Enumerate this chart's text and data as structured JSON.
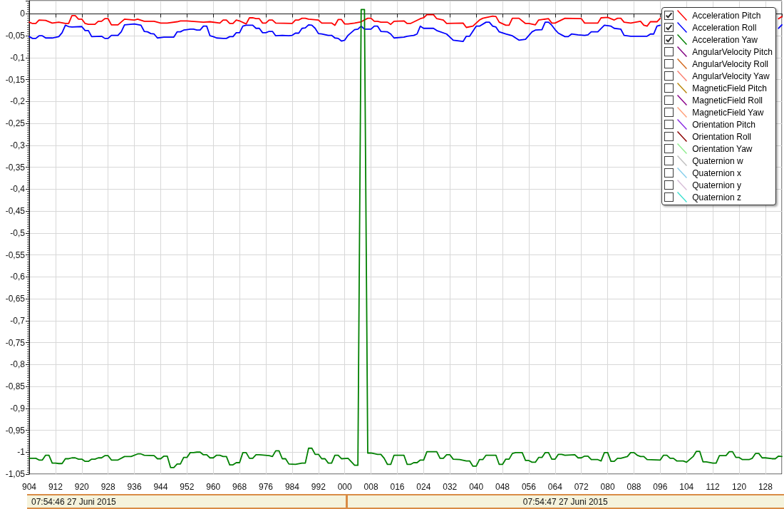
{
  "chart_data": {
    "type": "line",
    "xlim": [
      "2015-06-27T07:54:46.904",
      "2015-06-27T07:54:47.133"
    ],
    "ylim": [
      -1.05,
      0.03
    ],
    "xticks": [
      {
        "value": "2015-06-27T07:54:46.904",
        "label": "904"
      },
      {
        "value": "2015-06-27T07:54:46.912",
        "label": "912"
      },
      {
        "value": "2015-06-27T07:54:46.920",
        "label": "920"
      },
      {
        "value": "2015-06-27T07:54:46.928",
        "label": "928"
      },
      {
        "value": "2015-06-27T07:54:46.936",
        "label": "936"
      },
      {
        "value": "2015-06-27T07:54:46.944",
        "label": "944"
      },
      {
        "value": "2015-06-27T07:54:46.952",
        "label": "952"
      },
      {
        "value": "2015-06-27T07:54:46.960",
        "label": "960"
      },
      {
        "value": "2015-06-27T07:54:46.968",
        "label": "968"
      },
      {
        "value": "2015-06-27T07:54:46.976",
        "label": "976"
      },
      {
        "value": "2015-06-27T07:54:46.984",
        "label": "984"
      },
      {
        "value": "2015-06-27T07:54:46.992",
        "label": "992"
      },
      {
        "value": "2015-06-27T07:54:47.000",
        "label": "000"
      },
      {
        "value": "2015-06-27T07:54:47.008",
        "label": "008"
      },
      {
        "value": "2015-06-27T07:54:47.016",
        "label": "016"
      },
      {
        "value": "2015-06-27T07:54:47.024",
        "label": "024"
      },
      {
        "value": "2015-06-27T07:54:47.032",
        "label": "032"
      },
      {
        "value": "2015-06-27T07:54:47.040",
        "label": "040"
      },
      {
        "value": "2015-06-27T07:54:47.048",
        "label": "048"
      },
      {
        "value": "2015-06-27T07:54:47.056",
        "label": "056"
      },
      {
        "value": "2015-06-27T07:54:47.064",
        "label": "064"
      },
      {
        "value": "2015-06-27T07:54:47.072",
        "label": "072"
      },
      {
        "value": "2015-06-27T07:54:47.080",
        "label": "080"
      },
      {
        "value": "2015-06-27T07:54:47.088",
        "label": "088"
      },
      {
        "value": "2015-06-27T07:54:47.096",
        "label": "096"
      },
      {
        "value": "2015-06-27T07:54:47.104",
        "label": "104"
      },
      {
        "value": "2015-06-27T07:54:47.112",
        "label": "112"
      },
      {
        "value": "2015-06-27T07:54:47.120",
        "label": "120"
      },
      {
        "value": "2015-06-27T07:54:47.128",
        "label": "128"
      }
    ],
    "yticks": [
      {
        "value": -1.05,
        "label": "-1,05"
      },
      -1,
      {
        "value": -0.95,
        "label": "-0,95"
      },
      {
        "value": -0.9,
        "label": "-0,9"
      },
      {
        "value": -0.85,
        "label": "-0,85"
      },
      {
        "value": -0.8,
        "label": "-0,8"
      },
      {
        "value": -0.75,
        "label": "-0,75"
      },
      {
        "value": -0.7,
        "label": "-0,7"
      },
      {
        "value": -0.65,
        "label": "-0,65"
      },
      {
        "value": -0.6,
        "label": "-0,6"
      },
      {
        "value": -0.55,
        "label": "-0,55"
      },
      {
        "value": -0.5,
        "label": "-0,5"
      },
      {
        "value": -0.45,
        "label": "-0,45"
      },
      {
        "value": -0.4,
        "label": "-0,4"
      },
      {
        "value": -0.35,
        "label": "-0,35"
      },
      {
        "value": -0.3,
        "label": "-0,3"
      },
      {
        "value": -0.25,
        "label": "-0,25"
      },
      {
        "value": -0.2,
        "label": "-0,2"
      },
      {
        "value": -0.15,
        "label": "-0,15"
      },
      {
        "value": -0.1,
        "label": "-0,1"
      },
      {
        "value": -0.05,
        "label": "-0,05"
      },
      0
    ],
    "grid": true,
    "legend": "top right",
    "annotations": [
      "07:54:46 27 Juni 2015",
      "07:54:47 27 Juni 2015"
    ],
    "series": [
      {
        "name": "Acceleration Pitch",
        "color": "#ff0000",
        "x": [
          "2015-06-27T07:54:46.904",
          "2015-06-27T07:54:46.905",
          "2015-06-27T07:54:46.906",
          "2015-06-27T07:54:46.907",
          "2015-06-27T07:54:46.909",
          "2015-06-27T07:54:46.911",
          "2015-06-27T07:54:46.913",
          "2015-06-27T07:54:46.915",
          "2015-06-27T07:54:46.916",
          "2015-06-27T07:54:46.917",
          "2015-06-27T07:54:46.918",
          "2015-06-27T07:54:46.919",
          "2015-06-27T07:54:46.920",
          "2015-06-27T07:54:46.921",
          "2015-06-27T07:54:46.922",
          "2015-06-27T07:54:46.924",
          "2015-06-27T07:54:46.925",
          "2015-06-27T07:54:46.926",
          "2015-06-27T07:54:46.927",
          "2015-06-27T07:54:46.928",
          "2015-06-27T07:54:46.929",
          "2015-06-27T07:54:46.931",
          "2015-06-27T07:54:46.933",
          "2015-06-27T07:54:46.936",
          "2015-06-27T07:54:46.937",
          "2015-06-27T07:54:46.939",
          "2015-06-27T07:54:46.942",
          "2015-06-27T07:54:46.944",
          "2015-06-27T07:54:46.946",
          "2015-06-27T07:54:46.949",
          "2015-06-27T07:54:46.950",
          "2015-06-27T07:54:46.952",
          "2015-06-27T07:54:46.957",
          "2015-06-27T07:54:46.959",
          "2015-06-27T07:54:46.962",
          "2015-06-27T07:54:46.963",
          "2015-06-27T07:54:46.964",
          "2015-06-27T07:54:46.965",
          "2015-06-27T07:54:46.966",
          "2015-06-27T07:54:46.967",
          "2015-06-27T07:54:46.968",
          "2015-06-27T07:54:46.970",
          "2015-06-27T07:54:46.971",
          "2015-06-27T07:54:46.972",
          "2015-06-27T07:54:46.973",
          "2015-06-27T07:54:46.974",
          "2015-06-27T07:54:46.975",
          "2015-06-27T07:54:46.976",
          "2015-06-27T07:54:46.977",
          "2015-06-27T07:54:46.978",
          "2015-06-27T07:54:46.979",
          "2015-06-27T07:54:46.984",
          "2015-06-27T07:54:46.985",
          "2015-06-27T07:54:46.986",
          "2015-06-27T07:54:46.987",
          "2015-06-27T07:54:46.988",
          "2015-06-27T07:54:46.989",
          "2015-06-27T07:54:46.992",
          "2015-06-27T07:54:46.993",
          "2015-06-27T07:54:46.996",
          "2015-06-27T07:54:46.997",
          "2015-06-27T07:54:46.998",
          "2015-06-27T07:54:46.999",
          "2015-06-27T07:54:47.000",
          "2015-06-27T07:54:47.001",
          "2015-06-27T07:54:47.003",
          "2015-06-27T07:54:47.005",
          "2015-06-27T07:54:47.007",
          "2015-06-27T07:54:47.008",
          "2015-06-27T07:54:47.009",
          "2015-06-27T07:54:47.010",
          "2015-06-27T07:54:47.011",
          "2015-06-27T07:54:47.013",
          "2015-06-27T07:54:47.014",
          "2015-06-27T07:54:47.015",
          "2015-06-27T07:54:47.018",
          "2015-06-27T07:54:47.019",
          "2015-06-27T07:54:47.020",
          "2015-06-27T07:54:47.023",
          "2015-06-27T07:54:47.024",
          "2015-06-27T07:54:47.025",
          "2015-06-27T07:54:47.027",
          "2015-06-27T07:54:47.028",
          "2015-06-27T07:54:47.030",
          "2015-06-27T07:54:47.031",
          "2015-06-27T07:54:47.036",
          "2015-06-27T07:54:47.037",
          "2015-06-27T07:54:47.039",
          "2015-06-27T07:54:47.041",
          "2015-06-27T07:54:47.042",
          "2015-06-27T07:54:47.045",
          "2015-06-27T07:54:47.046",
          "2015-06-27T07:54:47.047",
          "2015-06-27T07:54:47.049",
          "2015-06-27T07:54:47.050",
          "2015-06-27T07:54:47.051",
          "2015-06-27T07:54:47.053",
          "2015-06-27T07:54:47.055",
          "2015-06-27T07:54:47.056",
          "2015-06-27T07:54:47.058",
          "2015-06-27T07:54:47.059",
          "2015-06-27T07:54:47.062",
          "2015-06-27T07:54:47.063",
          "2015-06-27T07:54:47.064",
          "2015-06-27T07:54:47.067",
          "2015-06-27T07:54:47.072",
          "2015-06-27T07:54:47.073",
          "2015-06-27T07:54:47.077",
          "2015-06-27T07:54:47.078",
          "2015-06-27T07:54:47.080",
          "2015-06-27T07:54:47.082",
          "2015-06-27T07:54:47.083",
          "2015-06-27T07:54:47.084",
          "2015-06-27T07:54:47.085",
          "2015-06-27T07:54:47.087",
          "2015-06-27T07:54:47.090",
          "2015-06-27T07:54:47.091",
          "2015-06-27T07:54:47.092",
          "2015-06-27T07:54:47.093",
          "2015-06-27T07:54:47.095",
          "2015-06-27T07:54:47.096",
          "2015-06-27T07:54:47.100",
          "2015-06-27T07:54:47.132",
          "2015-06-27T07:54:47.133"
        ],
        "values": [
          -0.019,
          -0.022,
          -0.022,
          -0.014,
          -0.015,
          -0.021,
          -0.019,
          -0.022,
          -0.022,
          -0.004,
          -0.004,
          -0.012,
          -0.012,
          -0.022,
          -0.024,
          -0.024,
          -0.017,
          -0.017,
          -0.011,
          -0.011,
          -0.025,
          -0.025,
          -0.012,
          -0.014,
          -0.012,
          -0.017,
          -0.017,
          -0.021,
          -0.021,
          -0.018,
          -0.016,
          -0.016,
          -0.019,
          -0.018,
          -0.021,
          -0.014,
          -0.014,
          -0.022,
          -0.022,
          -0.014,
          -0.016,
          -0.023,
          -0.009,
          -0.009,
          -0.011,
          -0.011,
          -0.021,
          -0.021,
          -0.014,
          -0.014,
          -0.021,
          -0.022,
          -0.014,
          -0.014,
          -0.01,
          -0.01,
          -0.012,
          -0.014,
          -0.021,
          -0.021,
          -0.026,
          -0.013,
          -0.013,
          -0.023,
          -0.023,
          -0.021,
          -0.018,
          -0.01,
          -0.01,
          -0.017,
          -0.017,
          -0.019,
          -0.019,
          -0.024,
          -0.017,
          -0.016,
          -0.022,
          -0.022,
          -0.011,
          -0.009,
          -0.002,
          -0.002,
          -0.011,
          -0.014,
          -0.022,
          -0.021,
          -0.031,
          -0.028,
          -0.014,
          -0.01,
          -0.005,
          -0.006,
          -0.019,
          -0.026,
          -0.026,
          -0.01,
          -0.01,
          -0.022,
          -0.022,
          -0.025,
          -0.014,
          -0.011,
          -0.021,
          -0.021,
          -0.01,
          -0.011,
          -0.021,
          -0.021,
          -0.009,
          -0.008,
          -0.014,
          -0.01,
          -0.01,
          -0.019,
          -0.021,
          -0.017,
          -0.026,
          -0.028,
          -0.018,
          -0.018,
          -0.01,
          null,
          -0.011,
          -0.006
        ]
      },
      {
        "name": "Acceleration Roll",
        "color": "#0000ff",
        "x": [
          "2015-06-27T07:54:46.904",
          "2015-06-27T07:54:46.905",
          "2015-06-27T07:54:46.906",
          "2015-06-27T07:54:46.907",
          "2015-06-27T07:54:46.908",
          "2015-06-27T07:54:46.909",
          "2015-06-27T07:54:46.911",
          "2015-06-27T07:54:46.913",
          "2015-06-27T07:54:46.914",
          "2015-06-27T07:54:46.915",
          "2015-06-27T07:54:46.916",
          "2015-06-27T07:54:46.917",
          "2015-06-27T07:54:46.920",
          "2015-06-27T07:54:46.921",
          "2015-06-27T07:54:46.922",
          "2015-06-27T07:54:46.923",
          "2015-06-27T07:54:46.926",
          "2015-06-27T07:54:46.927",
          "2015-06-27T07:54:46.928",
          "2015-06-27T07:54:46.929",
          "2015-06-27T07:54:46.931",
          "2015-06-27T07:54:46.932",
          "2015-06-27T07:54:46.933",
          "2015-06-27T07:54:46.936",
          "2015-06-27T07:54:46.938",
          "2015-06-27T07:54:46.939",
          "2015-06-27T07:54:46.940",
          "2015-06-27T07:54:46.941",
          "2015-06-27T07:54:46.942",
          "2015-06-27T07:54:46.943",
          "2015-06-27T07:54:46.945",
          "2015-06-27T07:54:46.948",
          "2015-06-27T07:54:46.949",
          "2015-06-27T07:54:46.950",
          "2015-06-27T07:54:46.951",
          "2015-06-27T07:54:46.952",
          "2015-06-27T07:54:46.953",
          "2015-06-27T07:54:46.954",
          "2015-06-27T07:54:46.955",
          "2015-06-27T07:54:46.956",
          "2015-06-27T07:54:46.957",
          "2015-06-27T07:54:46.958",
          "2015-06-27T07:54:46.959",
          "2015-06-27T07:54:46.960",
          "2015-06-27T07:54:46.961",
          "2015-06-27T07:54:46.963",
          "2015-06-27T07:54:46.964",
          "2015-06-27T07:54:46.965",
          "2015-06-27T07:54:46.966",
          "2015-06-27T07:54:46.967",
          "2015-06-27T07:54:46.968",
          "2015-06-27T07:54:46.969",
          "2015-06-27T07:54:46.970",
          "2015-06-27T07:54:46.972",
          "2015-06-27T07:54:46.973",
          "2015-06-27T07:54:46.974",
          "2015-06-27T07:54:46.975",
          "2015-06-27T07:54:46.976",
          "2015-06-27T07:54:46.977",
          "2015-06-27T07:54:46.978",
          "2015-06-27T07:54:46.979",
          "2015-06-27T07:54:46.981",
          "2015-06-27T07:54:46.983",
          "2015-06-27T07:54:46.984",
          "2015-06-27T07:54:46.985",
          "2015-06-27T07:54:46.986",
          "2015-06-27T07:54:46.987",
          "2015-06-27T07:54:46.988",
          "2015-06-27T07:54:46.989",
          "2015-06-27T07:54:46.990",
          "2015-06-27T07:54:46.991",
          "2015-06-27T07:54:46.992",
          "2015-06-27T07:54:46.993",
          "2015-06-27T07:54:46.995",
          "2015-06-27T07:54:46.996",
          "2015-06-27T07:54:46.997",
          "2015-06-27T07:54:46.998",
          "2015-06-27T07:54:46.999",
          "2015-06-27T07:54:47.000",
          "2015-06-27T07:54:47.001",
          "2015-06-27T07:54:47.003",
          "2015-06-27T07:54:47.004",
          "2015-06-27T07:54:47.005",
          "2015-06-27T07:54:47.006",
          "2015-06-27T07:54:47.008",
          "2015-06-27T07:54:47.009",
          "2015-06-27T07:54:47.010",
          "2015-06-27T07:54:47.011",
          "2015-06-27T07:54:47.013",
          "2015-06-27T07:54:47.014",
          "2015-06-27T07:54:47.015",
          "2015-06-27T07:54:47.018",
          "2015-06-27T07:54:47.019",
          "2015-06-27T07:54:47.021",
          "2015-06-27T07:54:47.022",
          "2015-06-27T07:54:47.023",
          "2015-06-27T07:54:47.024",
          "2015-06-27T07:54:47.027",
          "2015-06-27T07:54:47.028",
          "2015-06-27T07:54:47.031",
          "2015-06-27T07:54:47.033",
          "2015-06-27T07:54:47.036",
          "2015-06-27T07:54:47.037",
          "2015-06-27T07:54:47.038",
          "2015-06-27T07:54:47.040",
          "2015-06-27T07:54:47.041",
          "2015-06-27T07:54:47.043",
          "2015-06-27T07:54:47.044",
          "2015-06-27T07:54:47.045",
          "2015-06-27T07:54:47.046",
          "2015-06-27T07:54:47.047",
          "2015-06-27T07:54:47.049",
          "2015-06-27T07:54:47.051",
          "2015-06-27T07:54:47.053",
          "2015-06-27T07:54:47.055",
          "2015-06-27T07:54:47.057",
          "2015-06-27T07:54:47.058",
          "2015-06-27T07:54:47.060",
          "2015-06-27T07:54:47.061",
          "2015-06-27T07:54:47.062",
          "2015-06-27T07:54:47.063",
          "2015-06-27T07:54:47.064",
          "2015-06-27T07:54:47.065",
          "2015-06-27T07:54:47.067",
          "2015-06-27T07:54:47.068",
          "2015-06-27T07:54:47.069",
          "2015-06-27T07:54:47.071",
          "2015-06-27T07:54:47.073",
          "2015-06-27T07:54:47.074",
          "2015-06-27T07:54:47.075",
          "2015-06-27T07:54:47.077",
          "2015-06-27T07:54:47.079",
          "2015-06-27T07:54:47.081",
          "2015-06-27T07:54:47.082",
          "2015-06-27T07:54:47.084",
          "2015-06-27T07:54:47.085",
          "2015-06-27T07:54:47.087",
          "2015-06-27T07:54:47.092",
          "2015-06-27T07:54:47.093",
          "2015-06-27T07:54:47.094",
          "2015-06-27T07:54:47.095",
          "2015-06-27T07:54:47.096",
          "2015-06-27T07:54:47.100",
          "2015-06-27T07:54:47.132",
          "2015-06-27T07:54:47.133"
        ],
        "values": [
          -0.052,
          -0.056,
          -0.056,
          -0.05,
          -0.05,
          -0.055,
          -0.055,
          -0.052,
          -0.043,
          -0.026,
          -0.029,
          -0.03,
          -0.029,
          -0.038,
          -0.038,
          -0.052,
          -0.051,
          -0.056,
          -0.056,
          -0.049,
          -0.049,
          -0.041,
          -0.025,
          -0.023,
          -0.026,
          -0.04,
          -0.041,
          -0.045,
          -0.046,
          -0.055,
          -0.053,
          -0.053,
          -0.041,
          -0.041,
          -0.037,
          -0.036,
          -0.035,
          -0.035,
          -0.037,
          -0.037,
          -0.028,
          -0.028,
          -0.05,
          -0.052,
          -0.055,
          -0.056,
          -0.056,
          -0.052,
          -0.052,
          -0.043,
          -0.043,
          -0.028,
          -0.026,
          -0.026,
          -0.033,
          -0.033,
          -0.043,
          -0.043,
          -0.04,
          -0.04,
          -0.05,
          -0.049,
          -0.05,
          -0.049,
          -0.044,
          -0.044,
          -0.033,
          -0.032,
          -0.025,
          -0.026,
          -0.033,
          -0.045,
          -0.046,
          -0.049,
          -0.049,
          -0.055,
          -0.056,
          -0.062,
          -0.06,
          -0.049,
          -0.036,
          -0.035,
          -0.028,
          -0.035,
          -0.035,
          -0.028,
          -0.028,
          -0.04,
          -0.041,
          -0.046,
          -0.055,
          -0.053,
          -0.051,
          -0.049,
          -0.046,
          -0.028,
          -0.033,
          -0.033,
          -0.038,
          -0.046,
          -0.06,
          -0.063,
          -0.051,
          -0.051,
          -0.028,
          -0.028,
          -0.019,
          -0.019,
          -0.028,
          -0.03,
          -0.041,
          -0.046,
          -0.05,
          -0.06,
          -0.058,
          -0.041,
          -0.037,
          -0.036,
          -0.019,
          -0.019,
          -0.026,
          -0.036,
          -0.044,
          -0.052,
          -0.052,
          -0.046,
          -0.048,
          -0.049,
          -0.048,
          -0.041,
          -0.041,
          -0.026,
          -0.028,
          -0.033,
          -0.035,
          -0.049,
          -0.051,
          -0.051,
          -0.046,
          -0.046,
          -0.028,
          -0.026,
          null,
          -0.033,
          -0.025
        ]
      },
      {
        "name": "Acceleration Yaw",
        "color": "#008000",
        "x": [
          "2015-06-27T07:54:46.904",
          "2015-06-27T07:54:46.906",
          "2015-06-27T07:54:46.907",
          "2015-06-27T07:54:46.908",
          "2015-06-27T07:54:46.909",
          "2015-06-27T07:54:46.910",
          "2015-06-27T07:54:46.911",
          "2015-06-27T07:54:46.912",
          "2015-06-27T07:54:46.913",
          "2015-06-27T07:54:46.914",
          "2015-06-27T07:54:46.915",
          "2015-06-27T07:54:46.916",
          "2015-06-27T07:54:46.917",
          "2015-06-27T07:54:46.918",
          "2015-06-27T07:54:46.919",
          "2015-06-27T07:54:46.920",
          "2015-06-27T07:54:46.921",
          "2015-06-27T07:54:46.922",
          "2015-06-27T07:54:46.923",
          "2015-06-27T07:54:46.924",
          "2015-06-27T07:54:46.925",
          "2015-06-27T07:54:46.926",
          "2015-06-27T07:54:46.927",
          "2015-06-27T07:54:46.928",
          "2015-06-27T07:54:46.929",
          "2015-06-27T07:54:46.931",
          "2015-06-27T07:54:46.933",
          "2015-06-27T07:54:46.935",
          "2015-06-27T07:54:46.937",
          "2015-06-27T07:54:46.938",
          "2015-06-27T07:54:46.939",
          "2015-06-27T07:54:46.942",
          "2015-06-27T07:54:46.943",
          "2015-06-27T07:54:46.944",
          "2015-06-27T07:54:46.945",
          "2015-06-27T07:54:46.946",
          "2015-06-27T07:54:46.947",
          "2015-06-27T07:54:46.948",
          "2015-06-27T07:54:46.949",
          "2015-06-27T07:54:46.950",
          "2015-06-27T07:54:46.951",
          "2015-06-27T07:54:46.952",
          "2015-06-27T07:54:46.953",
          "2015-06-27T07:54:46.954",
          "2015-06-27T07:54:46.955",
          "2015-06-27T07:54:46.956",
          "2015-06-27T07:54:46.957",
          "2015-06-27T07:54:46.958",
          "2015-06-27T07:54:46.959",
          "2015-06-27T07:54:46.960",
          "2015-06-27T07:54:46.961",
          "2015-06-27T07:54:46.962",
          "2015-06-27T07:54:46.963",
          "2015-06-27T07:54:46.964",
          "2015-06-27T07:54:46.965",
          "2015-06-27T07:54:46.966",
          "2015-06-27T07:54:46.967",
          "2015-06-27T07:54:46.968",
          "2015-06-27T07:54:46.969",
          "2015-06-27T07:54:46.970",
          "2015-06-27T07:54:46.971",
          "2015-06-27T07:54:46.972",
          "2015-06-27T07:54:46.973",
          "2015-06-27T07:54:46.974",
          "2015-06-27T07:54:46.977",
          "2015-06-27T07:54:46.978",
          "2015-06-27T07:54:46.979",
          "2015-06-27T07:54:46.980",
          "2015-06-27T07:54:46.981",
          "2015-06-27T07:54:46.982",
          "2015-06-27T07:54:46.983",
          "2015-06-27T07:54:46.985",
          "2015-06-27T07:54:46.987",
          "2015-06-27T07:54:46.988",
          "2015-06-27T07:54:46.989",
          "2015-06-27T07:54:46.990",
          "2015-06-27T07:54:46.991",
          "2015-06-27T07:54:46.992",
          "2015-06-27T07:54:46.993",
          "2015-06-27T07:54:46.994",
          "2015-06-27T07:54:46.995",
          "2015-06-27T07:54:46.996",
          "2015-06-27T07:54:46.997",
          "2015-06-27T07:54:46.998",
          "2015-06-27T07:54:46.999",
          "2015-06-27T07:54:47.001",
          "2015-06-27T07:54:47.003",
          "2015-06-27T07:54:47.004",
          "2015-06-27T07:54:47.005",
          "2015-06-27T07:54:47.006",
          "2015-06-27T07:54:47.007",
          "2015-06-27T07:54:47.008",
          "2015-06-27T07:54:47.010",
          "2015-06-27T07:54:47.011",
          "2015-06-27T07:54:47.012",
          "2015-06-27T07:54:47.013",
          "2015-06-27T07:54:47.014",
          "2015-06-27T07:54:47.015",
          "2015-06-27T07:54:47.018",
          "2015-06-27T07:54:47.019",
          "2015-06-27T07:54:47.020",
          "2015-06-27T07:54:47.021",
          "2015-06-27T07:54:47.022",
          "2015-06-27T07:54:47.023",
          "2015-06-27T07:54:47.024",
          "2015-06-27T07:54:47.025",
          "2015-06-27T07:54:47.028",
          "2015-06-27T07:54:47.029",
          "2015-06-27T07:54:47.030",
          "2015-06-27T07:54:47.031",
          "2015-06-27T07:54:47.032",
          "2015-06-27T07:54:47.033",
          "2015-06-27T07:54:47.035",
          "2015-06-27T07:54:47.037",
          "2015-06-27T07:54:47.038",
          "2015-06-27T07:54:47.039",
          "2015-06-27T07:54:47.040",
          "2015-06-27T07:54:47.041",
          "2015-06-27T07:54:47.042",
          "2015-06-27T07:54:47.043",
          "2015-06-27T07:54:47.046",
          "2015-06-27T07:54:47.047",
          "2015-06-27T07:54:47.048",
          "2015-06-27T07:54:47.049",
          "2015-06-27T07:54:47.050",
          "2015-06-27T07:54:47.051",
          "2015-06-27T07:54:47.052",
          "2015-06-27T07:54:47.054",
          "2015-06-27T07:54:47.055",
          "2015-06-27T07:54:47.056",
          "2015-06-27T07:54:47.057",
          "2015-06-27T07:54:47.058",
          "2015-06-27T07:54:47.059",
          "2015-06-27T07:54:47.060",
          "2015-06-27T07:54:47.061",
          "2015-06-27T07:54:47.062",
          "2015-06-27T07:54:47.063",
          "2015-06-27T07:54:47.064",
          "2015-06-27T07:54:47.065",
          "2015-06-27T07:54:47.066",
          "2015-06-27T07:54:47.067",
          "2015-06-27T07:54:47.070",
          "2015-06-27T07:54:47.071",
          "2015-06-27T07:54:47.072",
          "2015-06-27T07:54:47.073",
          "2015-06-27T07:54:47.074",
          "2015-06-27T07:54:47.075",
          "2015-06-27T07:54:47.077",
          "2015-06-27T07:54:47.078",
          "2015-06-27T07:54:47.079",
          "2015-06-27T07:54:47.080",
          "2015-06-27T07:54:47.081",
          "2015-06-27T07:54:47.082",
          "2015-06-27T07:54:47.083",
          "2015-06-27T07:54:47.084",
          "2015-06-27T07:54:47.086",
          "2015-06-27T07:54:47.087",
          "2015-06-27T07:54:47.088",
          "2015-06-27T07:54:47.089",
          "2015-06-27T07:54:47.090",
          "2015-06-27T07:54:47.091",
          "2015-06-27T07:54:47.092",
          "2015-06-27T07:54:47.096",
          "2015-06-27T07:54:47.097",
          "2015-06-27T07:54:47.098",
          "2015-06-27T07:54:47.099",
          "2015-06-27T07:54:47.100",
          "2015-06-27T07:54:47.101",
          "2015-06-27T07:54:47.103",
          "2015-06-27T07:54:47.104",
          "2015-06-27T07:54:47.106",
          "2015-06-27T07:54:47.107",
          "2015-06-27T07:54:47.108",
          "2015-06-27T07:54:47.109",
          "2015-06-27T07:54:47.110",
          "2015-06-27T07:54:47.112",
          "2015-06-27T07:54:47.113",
          "2015-06-27T07:54:47.114",
          "2015-06-27T07:54:47.116",
          "2015-06-27T07:54:47.117",
          "2015-06-27T07:54:47.118",
          "2015-06-27T07:54:47.119",
          "2015-06-27T07:54:47.120",
          "2015-06-27T07:54:47.121",
          "2015-06-27T07:54:47.123",
          "2015-06-27T07:54:47.124",
          "2015-06-27T07:54:47.125",
          "2015-06-27T07:54:47.126",
          "2015-06-27T07:54:47.127",
          "2015-06-27T07:54:47.128",
          "2015-06-27T07:54:47.130",
          "2015-06-27T07:54:47.131",
          "2015-06-27T07:54:47.132",
          "2015-06-27T07:54:47.133"
        ],
        "values": [
          -1.014,
          -1.014,
          -1.018,
          -1.018,
          -1.007,
          -1.007,
          -1.025,
          -1.025,
          -1.026,
          -1.026,
          -1.015,
          -1.015,
          -1.013,
          -1.013,
          -1.016,
          -1.016,
          -1.021,
          -1.021,
          -1.016,
          -1.016,
          -1.013,
          -1.013,
          -1.008,
          -1.008,
          -1.018,
          -1.018,
          -1.01,
          -1.01,
          -1.004,
          -1.004,
          -1.007,
          -1.008,
          -1.015,
          -1.015,
          -1.009,
          -1.009,
          -1.035,
          -1.035,
          -1.027,
          -1.027,
          -1.012,
          -1.012,
          -1.001,
          -1.001,
          -1.0,
          -1.0,
          -1.006,
          -1.006,
          -1.013,
          -1.013,
          -1.007,
          -1.007,
          -1.01,
          -1.01,
          -1.029,
          -1.029,
          -1.024,
          -1.024,
          -1.001,
          -1.001,
          -1.014,
          -1.014,
          -1.006,
          -1.006,
          -1.008,
          -1.01,
          -0.997,
          -0.997,
          -1.015,
          -1.015,
          -1.027,
          -1.028,
          -1.025,
          -1.025,
          -0.991,
          -0.991,
          -1.005,
          -1.005,
          -1.015,
          -1.015,
          -1.025,
          -1.025,
          -1.007,
          -1.007,
          -1.015,
          -1.014,
          -1.03,
          -1.03,
          0.01,
          0.01,
          -1.002,
          -1.002,
          -1.005,
          -1.005,
          -1.014,
          -1.028,
          -1.028,
          -1.007,
          -1.007,
          -1.028,
          -1.028,
          -1.024,
          -1.024,
          -1.018,
          -1.018,
          -0.999,
          -0.999,
          -1.014,
          -1.014,
          -1.006,
          -1.006,
          -1.016,
          -1.017,
          -1.02,
          -1.02,
          -1.032,
          -1.032,
          -1.017,
          -1.017,
          -1.007,
          -1.007,
          -1.028,
          -1.028,
          -1.016,
          -1.016,
          -1.003,
          -1.001,
          -1.001,
          -1.019,
          -1.019,
          -1.023,
          -1.023,
          -1.012,
          -1.012,
          -1.001,
          -1.001,
          -1.016,
          -1.016,
          -1.005,
          -1.005,
          -1.007,
          -1.006,
          -1.013,
          -1.013,
          -1.009,
          -1.009,
          -1.017,
          -1.017,
          -1.02,
          -1.001,
          -1.001,
          -1.021,
          -1.021,
          -1.014,
          -1.014,
          -1.01,
          -1.001,
          -1.001,
          -1.007,
          -1.01,
          -1.01,
          -1.017,
          -1.018,
          -1.007,
          -1.007,
          -1.014,
          -1.014,
          -1.02,
          -1.02,
          -1.023,
          -1.01,
          -0.998,
          -0.998,
          -1.022,
          -1.022,
          -1.025,
          -1.025,
          -1.008,
          -1.008,
          -0.999,
          -0.999,
          -1.012,
          -1.012,
          -1.017,
          -1.017,
          -1.014,
          -1.003,
          -1.003,
          -1.013,
          -1.013,
          -1.015,
          -1.015,
          -1.009,
          -1.01
        ]
      },
      {
        "name": "AngularVelocity Pitch",
        "color": "#800080"
      },
      {
        "name": "AngularVelocity Roll",
        "color": "#d2691e"
      },
      {
        "name": "AngularVelocity Yaw",
        "color": "#fa8072"
      },
      {
        "name": "MagneticField Pitch",
        "color": "#b8860b"
      },
      {
        "name": "MagneticField Roll",
        "color": "#8b008b"
      },
      {
        "name": "MagneticField Yaw",
        "color": "#ffa07a"
      },
      {
        "name": "Orientation Pitch",
        "color": "#8a2be2"
      },
      {
        "name": "Orientation Roll",
        "color": "#8b0000"
      },
      {
        "name": "Orientation Yaw",
        "color": "#90ee90"
      },
      {
        "name": "Quaternion w",
        "color": "#c0c0c0"
      },
      {
        "name": "Quaternion x",
        "color": "#87ceeb"
      },
      {
        "name": "Quaternion y",
        "color": "#d8bfd8"
      },
      {
        "name": "Quaternion z",
        "color": "#40e0d0"
      }
    ]
  }
}
